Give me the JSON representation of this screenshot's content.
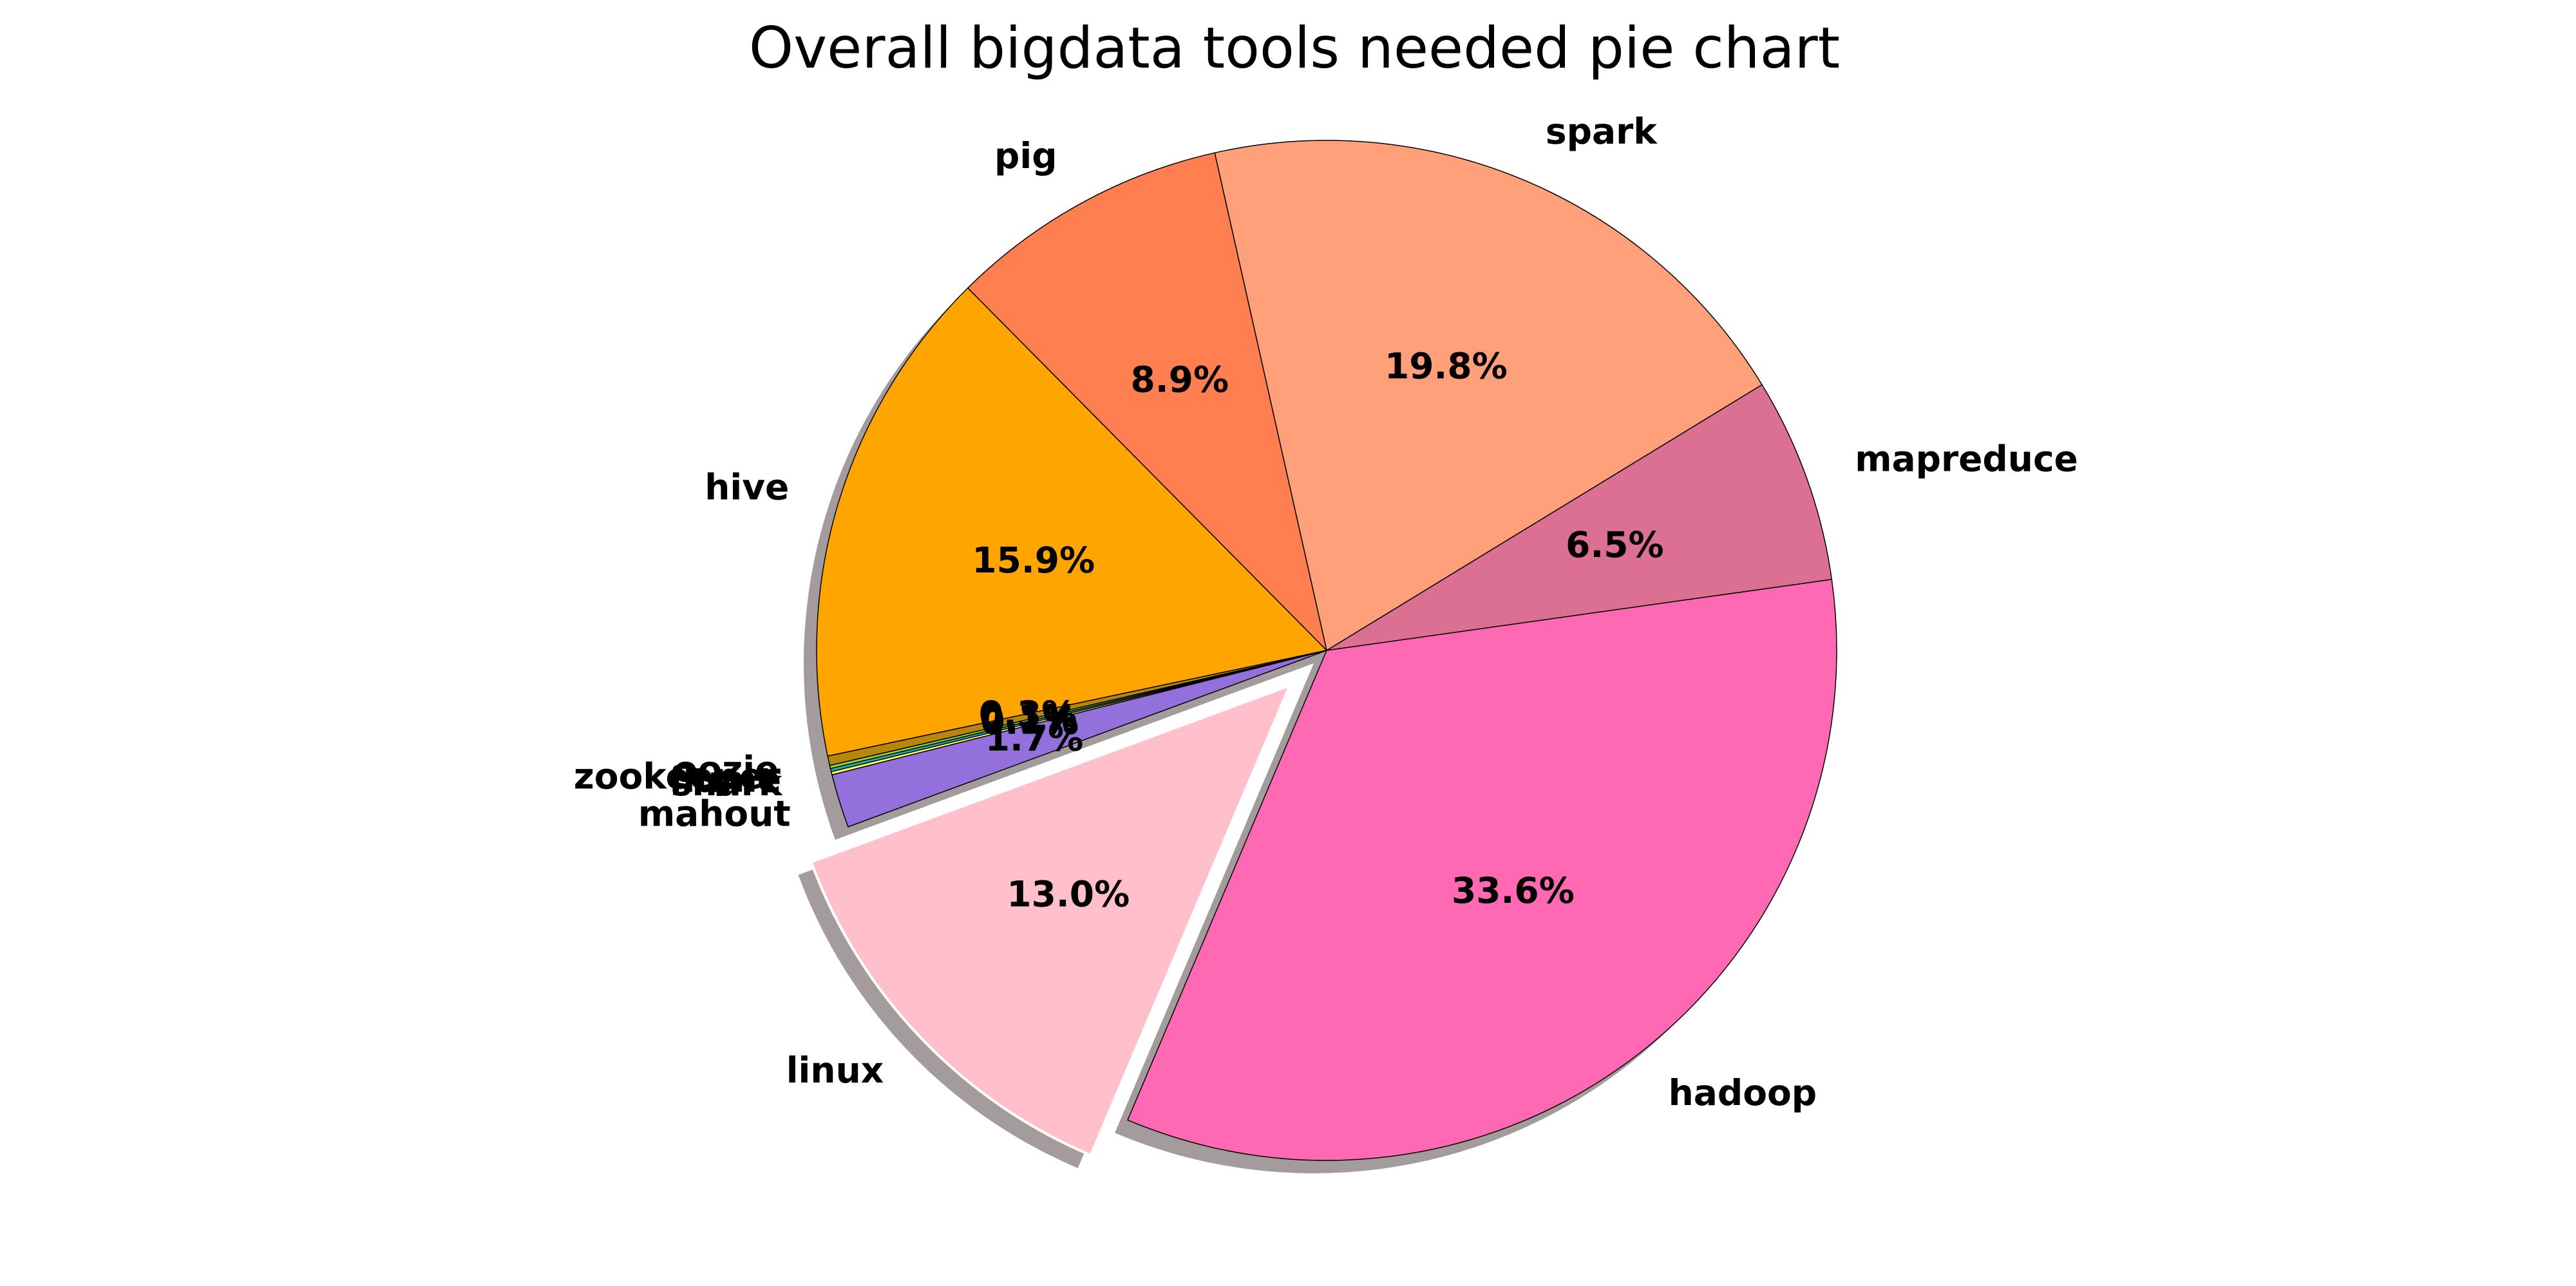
{
  "chart_data": {
    "type": "pie",
    "title": "Overall bigdata tools needed pie chart",
    "start_angle_deg": 8,
    "direction": "counterclockwise",
    "shadow": true,
    "slices": [
      {
        "label": "mapreduce",
        "value": 6.5,
        "pct_label": "6.5%",
        "color": "#db7093",
        "explode": false
      },
      {
        "label": "spark",
        "value": 19.8,
        "pct_label": "19.8%",
        "color": "#ffa07a",
        "explode": false
      },
      {
        "label": "pig",
        "value": 8.9,
        "pct_label": "8.9%",
        "color": "#ff7f50",
        "explode": false
      },
      {
        "label": "hive",
        "value": 15.9,
        "pct_label": "15.9%",
        "color": "#ffa500",
        "explode": false
      },
      {
        "label": "oozie",
        "value": 0.3,
        "pct_label": "0.3%",
        "color": "#b8860b",
        "explode": false
      },
      {
        "label": "zookeeper",
        "value": 0.1,
        "pct_label": "0.1%",
        "color": "#9acd32",
        "explode": false
      },
      {
        "label": "flume",
        "value": 0.1,
        "pct_label": "0.1%",
        "color": "#20b2aa",
        "explode": false
      },
      {
        "label": "shark",
        "value": 0.1,
        "pct_label": "0.1%",
        "color": "#ffff66",
        "explode": false
      },
      {
        "label": "mahout",
        "value": 1.7,
        "pct_label": "1.7%",
        "color": "#9370db",
        "explode": false
      },
      {
        "label": "linux",
        "value": 13.0,
        "pct_label": "13.0%",
        "color": "#ffc0cb",
        "explode": true
      },
      {
        "label": "hadoop",
        "value": 33.6,
        "pct_label": "33.6%",
        "color": "#ff69b4",
        "explode": false
      }
    ]
  }
}
